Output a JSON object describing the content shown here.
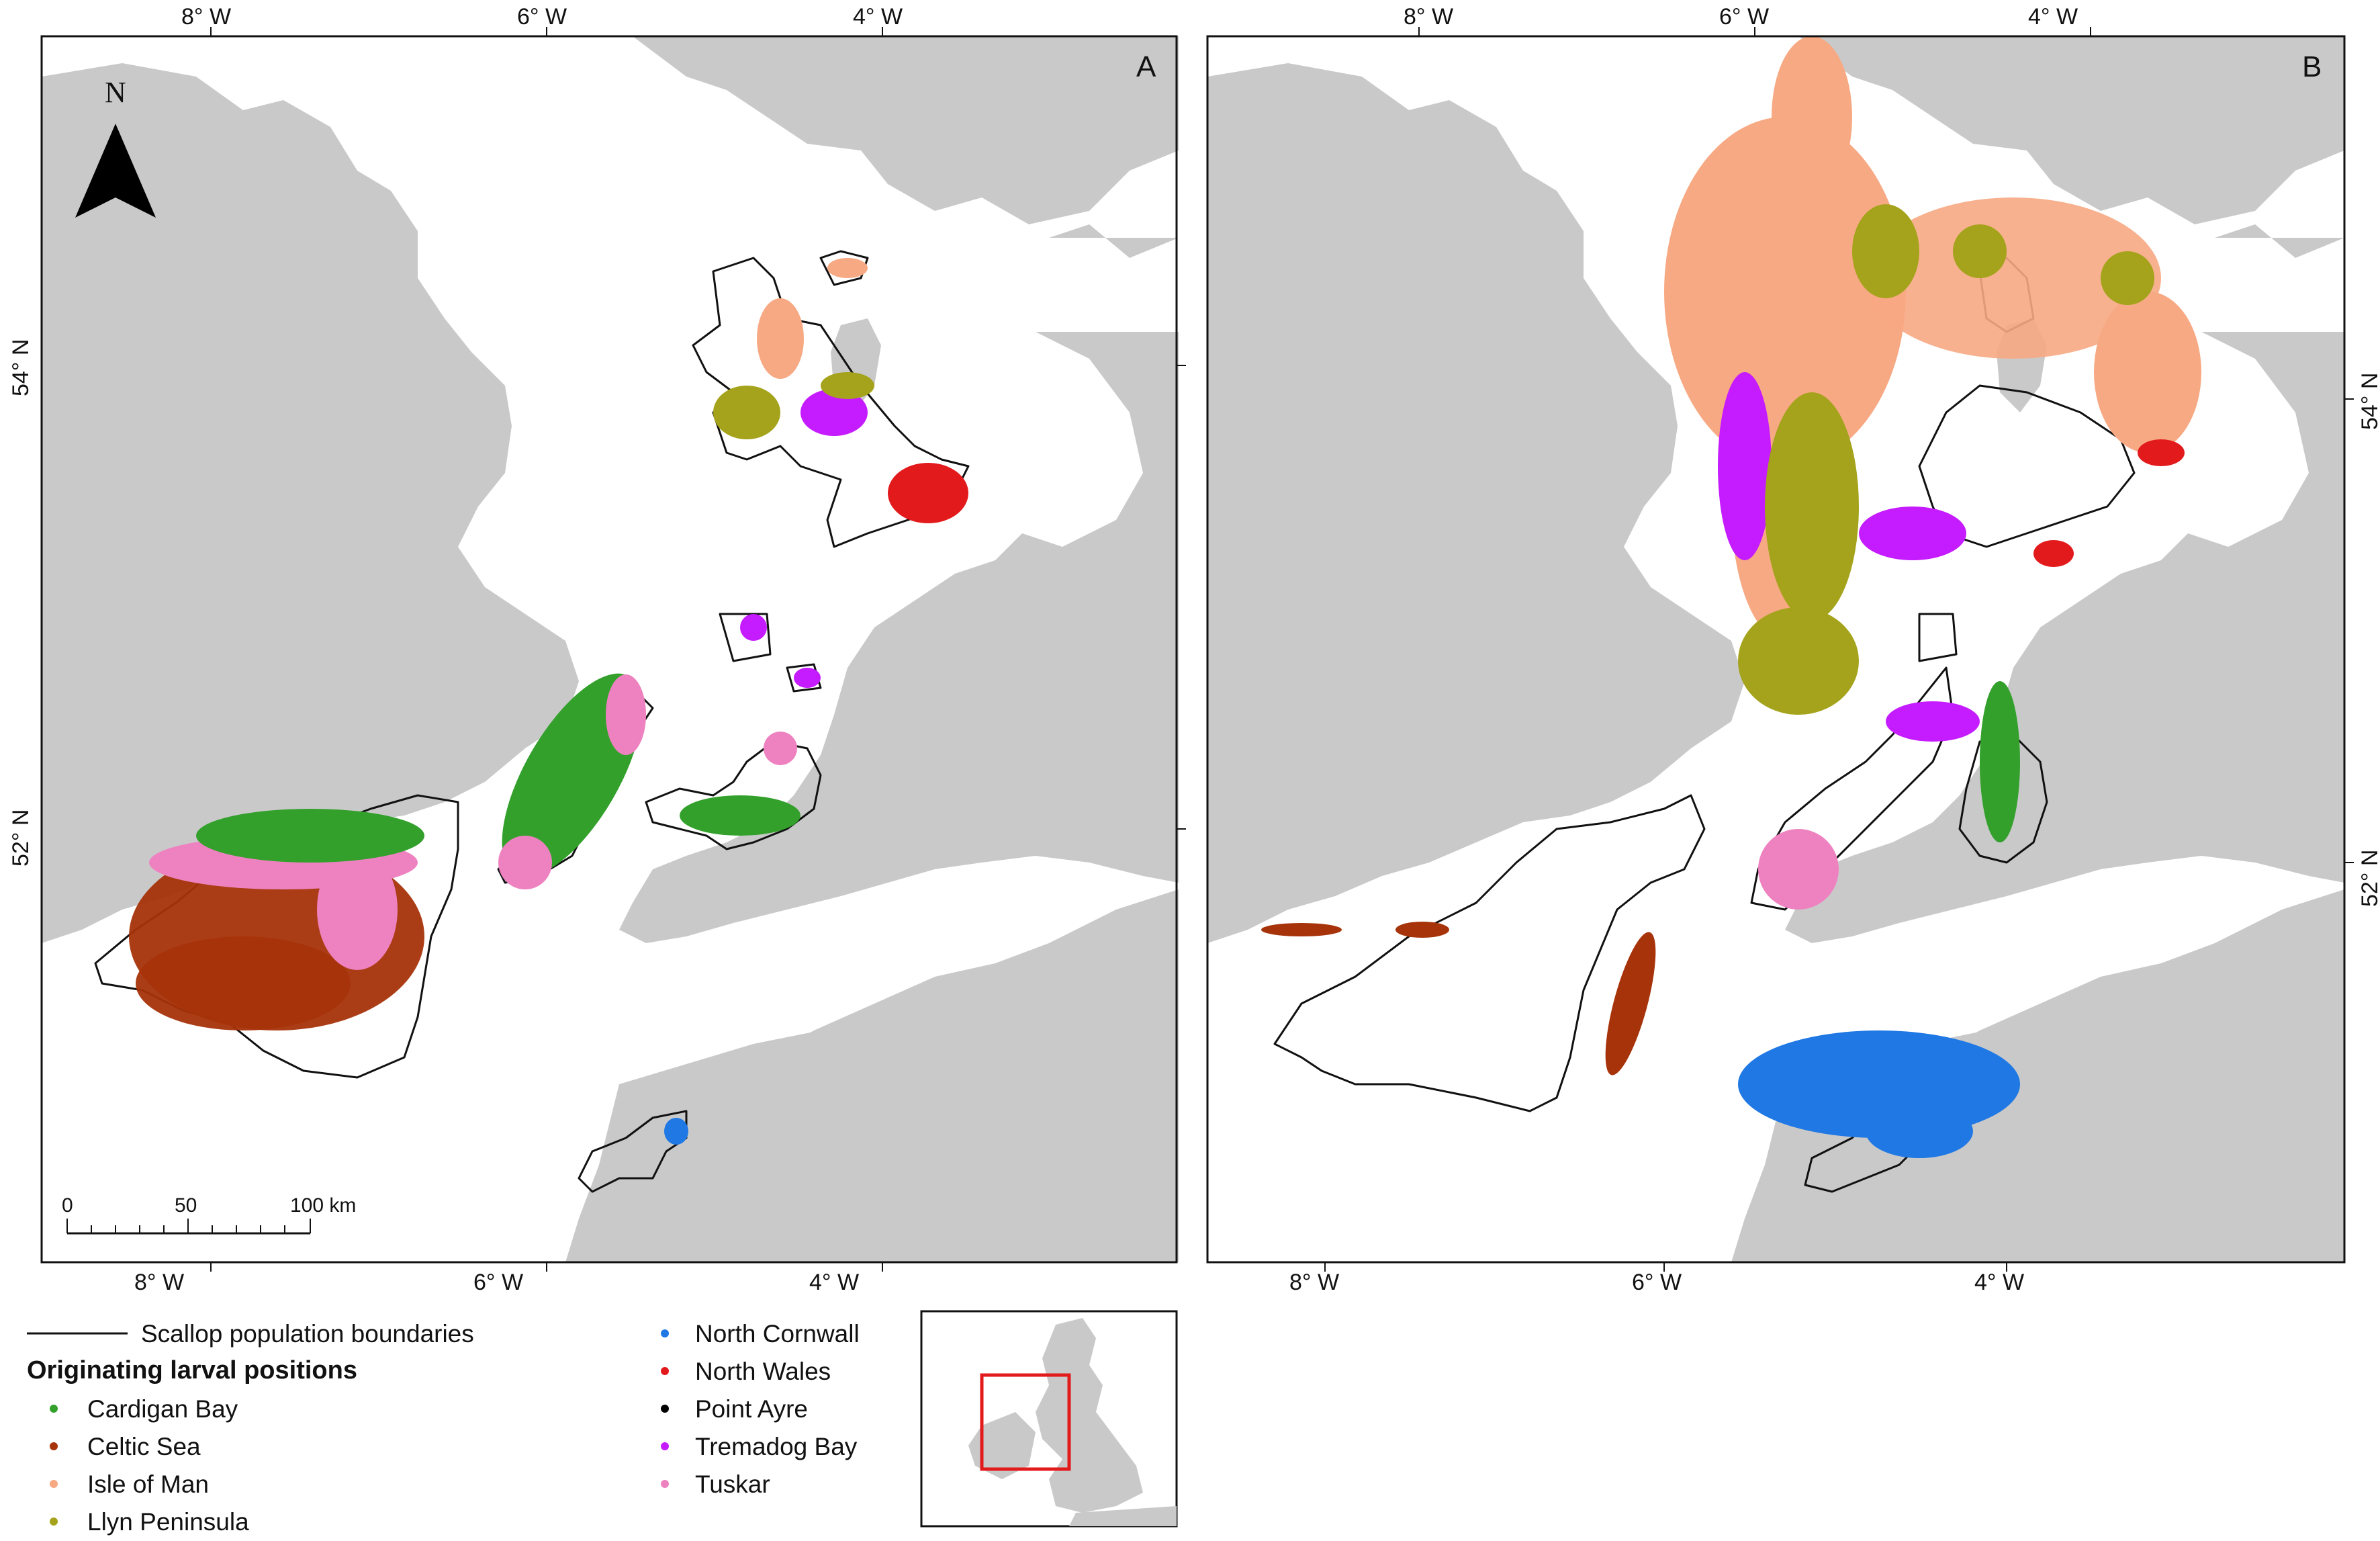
{
  "panels": [
    {
      "label": "A",
      "top_ticks": [
        "8° W",
        "6° W",
        "4° W"
      ],
      "bottom_ticks": [
        "8° W",
        "6° W",
        "4° W"
      ],
      "lat_ticks": [
        "54° N",
        "52° N"
      ]
    },
    {
      "label": "B",
      "top_ticks": [
        "8° W",
        "6° W",
        "4° W"
      ],
      "bottom_ticks": [
        "8° W",
        "6° W",
        "4° W"
      ],
      "lat_ticks": [
        "54° N",
        "52° N"
      ]
    }
  ],
  "north_arrow": {
    "label": "N"
  },
  "scale_bar": {
    "ticks": [
      "0",
      "50",
      "100 km"
    ]
  },
  "legend": {
    "boundary_label": "Scallop population boundaries",
    "heading": "Originating larval positions",
    "items": [
      {
        "label": "Cardigan Bay",
        "color": "#33a02c"
      },
      {
        "label": "Celtic Sea",
        "color": "#a6330a"
      },
      {
        "label": "Isle of Man",
        "color": "#f7a983"
      },
      {
        "label": "Llyn Peninsula",
        "color": "#a4a31b"
      },
      {
        "label": "North Cornwall",
        "color": "#1f78e4"
      },
      {
        "label": "North Wales",
        "color": "#e31a1c"
      },
      {
        "label": "Point Ayre",
        "color": "#000000"
      },
      {
        "label": "Tremadog Bay",
        "color": "#c51bff"
      },
      {
        "label": "Tuskar",
        "color": "#ee82c0"
      }
    ]
  },
  "colors": {
    "land": "#c9c9c9",
    "sea": "#ffffff",
    "inset_frame": "#e31a1c"
  }
}
